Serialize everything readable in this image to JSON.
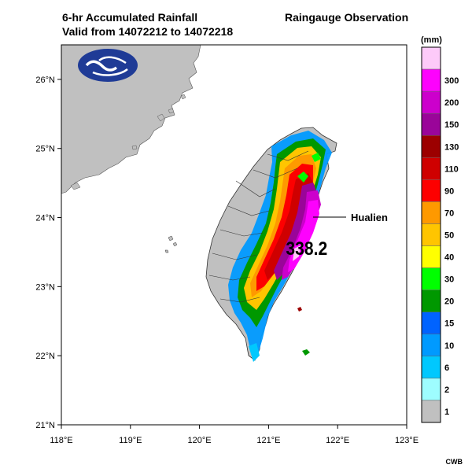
{
  "title": {
    "line1": "6-hr Accumulated Rainfall",
    "line2": "Valid from 14072212 to 14072218",
    "right": "Raingauge Observation"
  },
  "map": {
    "lon_ticks": [
      "118°E",
      "119°E",
      "120°E",
      "121°E",
      "122°E",
      "123°E"
    ],
    "lat_ticks": [
      "21°N",
      "22°N",
      "23°N",
      "24°N",
      "25°N",
      "26°N"
    ],
    "extent": {
      "lon": [
        118,
        123
      ],
      "lat": [
        21,
        26.5
      ]
    },
    "land_color": "#c0c0c0",
    "logo": "cwb-logo-icon"
  },
  "annotations": {
    "max_value": "338.2",
    "station": "Hualien"
  },
  "legend": {
    "unit": "(mm)",
    "levels": [
      {
        "label": "",
        "color": "#fdcaf9"
      },
      {
        "label": "300",
        "color": "#fd02fd"
      },
      {
        "label": "200",
        "color": "#cc00cc"
      },
      {
        "label": "150",
        "color": "#9a0599"
      },
      {
        "label": "130",
        "color": "#9c0000"
      },
      {
        "label": "110",
        "color": "#cf0000"
      },
      {
        "label": "90",
        "color": "#fd0000"
      },
      {
        "label": "70",
        "color": "#fe9900"
      },
      {
        "label": "50",
        "color": "#ffc500"
      },
      {
        "label": "40",
        "color": "#ffff00"
      },
      {
        "label": "30",
        "color": "#00ff00"
      },
      {
        "label": "20",
        "color": "#009800"
      },
      {
        "label": "15",
        "color": "#0063ff"
      },
      {
        "label": "10",
        "color": "#009aff"
      },
      {
        "label": "6",
        "color": "#00c8fe"
      },
      {
        "label": "2",
        "color": "#9efdff"
      },
      {
        "label": "1",
        "color": "#c0c0c0"
      }
    ]
  },
  "credit": "CWB"
}
